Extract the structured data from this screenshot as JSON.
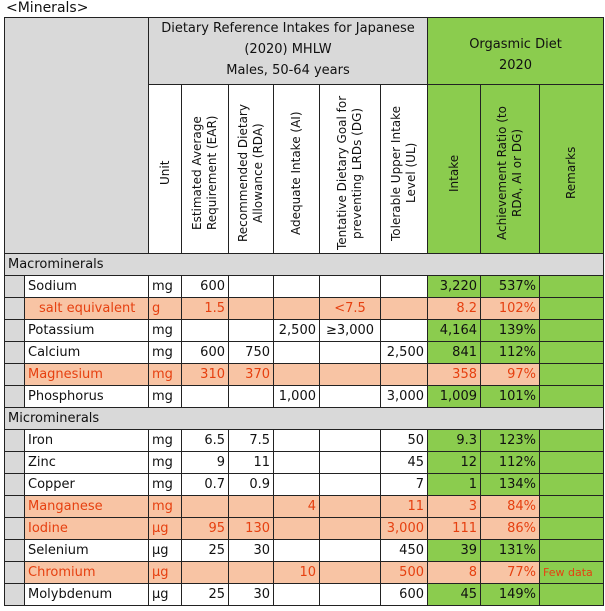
{
  "caption": "<Minerals>",
  "header": {
    "dri_title": "Dietary Reference Intakes for Japanese (2020) MHLW",
    "dri_subtitle": "Males, 50-64 years",
    "diet_title": "Orgasmic Diet 2020",
    "columns": {
      "unit": "Unit",
      "ear": "Estimated Average Requirement (EAR)",
      "rda": "Recommended Dietary Allowance (RDA)",
      "ai": "Adequate Intake (AI)",
      "dg": "Tentative Dietary Goal for preventing LRDs (DG)",
      "ul": "Tolerable Upper Intake Level (UL)",
      "intake": "Intake",
      "ratio": "Achievement Ratio (to RDA, AI or DG)",
      "remarks": "Remarks"
    }
  },
  "sections": {
    "macro": "Macrominerals",
    "micro": "Microminerals"
  },
  "rows": [
    {
      "name": "Sodium",
      "unit": "mg",
      "ear": "600",
      "rda": "",
      "ai": "",
      "dg": "",
      "ul": "",
      "intake": "3,220",
      "ratio": "537%",
      "remarks": "",
      "hl": false
    },
    {
      "name": "salt equivalent",
      "unit": "g",
      "ear": "1.5",
      "rda": "",
      "ai": "",
      "dg": "<7.5",
      "ul": "",
      "intake": "8.2",
      "ratio": "102%",
      "remarks": "",
      "hl": true
    },
    {
      "name": "Potassium",
      "unit": "mg",
      "ear": "",
      "rda": "",
      "ai": "2,500",
      "dg": "≥3,000",
      "ul": "",
      "intake": "4,164",
      "ratio": "139%",
      "remarks": "",
      "hl": false
    },
    {
      "name": "Calcium",
      "unit": "mg",
      "ear": "600",
      "rda": "750",
      "ai": "",
      "dg": "",
      "ul": "2,500",
      "intake": "841",
      "ratio": "112%",
      "remarks": "",
      "hl": false
    },
    {
      "name": "Magnesium",
      "unit": "mg",
      "ear": "310",
      "rda": "370",
      "ai": "",
      "dg": "",
      "ul": "",
      "intake": "358",
      "ratio": "97%",
      "remarks": "",
      "hl": true
    },
    {
      "name": "Phosphorus",
      "unit": "mg",
      "ear": "",
      "rda": "",
      "ai": "1,000",
      "dg": "",
      "ul": "3,000",
      "intake": "1,009",
      "ratio": "101%",
      "remarks": "",
      "hl": false
    },
    {
      "name": "Iron",
      "unit": "mg",
      "ear": "6.5",
      "rda": "7.5",
      "ai": "",
      "dg": "",
      "ul": "50",
      "intake": "9.3",
      "ratio": "123%",
      "remarks": "",
      "hl": false
    },
    {
      "name": "Zinc",
      "unit": "mg",
      "ear": "9",
      "rda": "11",
      "ai": "",
      "dg": "",
      "ul": "45",
      "intake": "12",
      "ratio": "112%",
      "remarks": "",
      "hl": false
    },
    {
      "name": "Copper",
      "unit": "mg",
      "ear": "0.7",
      "rda": "0.9",
      "ai": "",
      "dg": "",
      "ul": "7",
      "intake": "1",
      "ratio": "134%",
      "remarks": "",
      "hl": false
    },
    {
      "name": "Manganese",
      "unit": "mg",
      "ear": "",
      "rda": "",
      "ai": "4",
      "dg": "",
      "ul": "11",
      "intake": "3",
      "ratio": "84%",
      "remarks": "",
      "hl": true
    },
    {
      "name": "Iodine",
      "unit": "μg",
      "ear": "95",
      "rda": "130",
      "ai": "",
      "dg": "",
      "ul": "3,000",
      "intake": "111",
      "ratio": "86%",
      "remarks": "",
      "hl": true
    },
    {
      "name": "Selenium",
      "unit": "μg",
      "ear": "25",
      "rda": "30",
      "ai": "",
      "dg": "",
      "ul": "450",
      "intake": "39",
      "ratio": "131%",
      "remarks": "",
      "hl": false
    },
    {
      "name": "Chromium",
      "unit": "μg",
      "ear": "",
      "rda": "",
      "ai": "10",
      "dg": "",
      "ul": "500",
      "intake": "8",
      "ratio": "77%",
      "remarks": "Few data",
      "hl": true
    },
    {
      "name": "Molybdenum",
      "unit": "μg",
      "ear": "25",
      "rda": "30",
      "ai": "",
      "dg": "",
      "ul": "600",
      "intake": "45",
      "ratio": "149%",
      "remarks": "",
      "hl": false
    }
  ],
  "colors": {
    "header_gray": "#d9d9d9",
    "diet_green": "#8bcc4e",
    "highlight_fill": "#f8c4a4",
    "highlight_text": "#e64010"
  }
}
